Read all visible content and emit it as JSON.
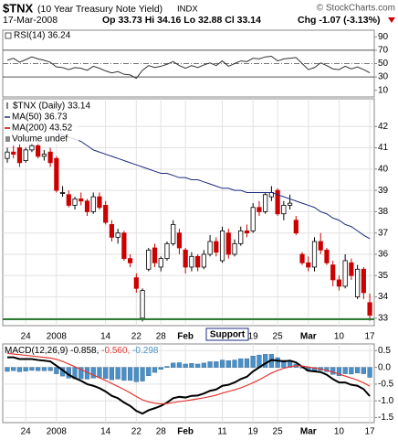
{
  "header": {
    "symbol": "$TNX",
    "name": "(10 Year Treasury Note Yield)",
    "exchange": "INDX",
    "credit": "© StockCharts.com",
    "date": "17-Mar-2008",
    "ohlc": "Op 33.73 Hi 34.16 Lo 32.88 Cl 33.14",
    "change": "Chg -1.07 (-3.13%)"
  },
  "chart_data": [
    {
      "type": "line",
      "title": "RSI(14) 36.24",
      "color": "#333333",
      "values": [
        55,
        58,
        52,
        56,
        60,
        57,
        55,
        52,
        45,
        44,
        41,
        44,
        43,
        40,
        46,
        43,
        39,
        36,
        38,
        34,
        33,
        28,
        40,
        47,
        44,
        46,
        49,
        53,
        47,
        43,
        47,
        44,
        48,
        51,
        47,
        54,
        46,
        50,
        54,
        53,
        58,
        57,
        60,
        61,
        54,
        57,
        58,
        59,
        50,
        41,
        44,
        51,
        47,
        42,
        41,
        46,
        42,
        45,
        41,
        36.24
      ],
      "ylim": [
        0,
        100
      ],
      "yticks": [
        10,
        30,
        50,
        70,
        90
      ],
      "levels": [
        70,
        30
      ],
      "dashed_levels": [
        50
      ]
    },
    {
      "type": "candlestick",
      "title": "$TNX (Daily) 33.14",
      "categories": [
        null,
        null,
        null,
        "24",
        null,
        null,
        null,
        null,
        "2008",
        null,
        null,
        null,
        null,
        null,
        null,
        null,
        "14",
        null,
        null,
        null,
        null,
        "22",
        null,
        null,
        null,
        "28",
        null,
        null,
        null,
        "Feb",
        null,
        null,
        null,
        null,
        null,
        "11",
        null,
        null,
        null,
        null,
        "19",
        null,
        null,
        null,
        "25",
        null,
        null,
        null,
        null,
        "Mar",
        null,
        null,
        null,
        null,
        "10",
        null,
        null,
        null,
        null,
        "17"
      ],
      "open": [
        40.5,
        40.8,
        41.0,
        40.4,
        40.9,
        41.1,
        40.6,
        40.8,
        40.5,
        38.9,
        38.8,
        38.3,
        38.6,
        38.5,
        38.0,
        38.7,
        38.3,
        37.4,
        36.8,
        37.0,
        35.8,
        34.9,
        33.0,
        35.3,
        36.3,
        35.4,
        35.8,
        36.5,
        37.0,
        36.2,
        35.4,
        35.9,
        35.4,
        36.0,
        36.6,
        35.7,
        37.0,
        36.0,
        36.5,
        37.1,
        37.1,
        38.2,
        38.0,
        38.7,
        39.0,
        37.9,
        38.3,
        37.6,
        36.0,
        35.6,
        35.4,
        36.6,
        36.2,
        35.5,
        34.8,
        34.5,
        35.6,
        34.0,
        35.3,
        33.73
      ],
      "high": [
        41.0,
        41.1,
        41.2,
        41.0,
        41.2,
        41.3,
        40.9,
        41.0,
        40.6,
        39.2,
        39.0,
        38.7,
        38.9,
        38.6,
        38.9,
        38.9,
        38.5,
        37.6,
        37.2,
        37.1,
        36.0,
        35.1,
        34.4,
        36.3,
        36.5,
        35.9,
        36.6,
        37.6,
        37.2,
        36.3,
        36.1,
        36.0,
        36.2,
        36.9,
        36.8,
        37.3,
        37.2,
        36.7,
        37.3,
        37.4,
        38.4,
        38.5,
        38.9,
        39.2,
        39.1,
        38.5,
        38.8,
        37.8,
        36.1,
        35.9,
        36.8,
        37.0,
        36.3,
        35.7,
        35.0,
        36.0,
        35.8,
        35.5,
        35.4,
        34.16
      ],
      "low": [
        40.3,
        40.5,
        40.1,
        40.3,
        40.8,
        40.5,
        40.4,
        40.1,
        38.9,
        38.7,
        38.2,
        38.1,
        38.3,
        37.8,
        37.9,
        38.1,
        37.4,
        36.6,
        36.5,
        35.7,
        35.4,
        34.2,
        32.85,
        35.2,
        35.4,
        35.2,
        35.7,
        36.4,
        36.0,
        35.1,
        35.2,
        35.2,
        35.3,
        35.9,
        35.9,
        35.6,
        35.8,
        35.9,
        36.4,
        36.8,
        37.0,
        37.8,
        37.9,
        38.5,
        37.8,
        37.6,
        38.1,
        36.9,
        35.5,
        35.2,
        35.2,
        36.0,
        35.5,
        34.5,
        34.3,
        34.4,
        34.8,
        33.9,
        33.9,
        32.88
      ],
      "close": [
        40.8,
        40.7,
        40.3,
        40.9,
        41.1,
        40.6,
        40.7,
        40.3,
        39.0,
        38.9,
        38.3,
        38.6,
        38.5,
        38.0,
        38.7,
        38.2,
        37.5,
        36.8,
        37.0,
        35.8,
        35.6,
        34.4,
        34.3,
        36.2,
        35.6,
        35.8,
        36.5,
        37.4,
        36.3,
        35.4,
        35.9,
        35.4,
        36.0,
        36.6,
        36.1,
        37.1,
        36.0,
        36.5,
        37.1,
        37.0,
        38.2,
        38.0,
        38.8,
        38.9,
        37.9,
        38.3,
        38.4,
        37.0,
        35.6,
        35.4,
        36.6,
        36.2,
        35.6,
        34.8,
        34.5,
        35.7,
        35.0,
        35.3,
        34.2,
        33.14
      ],
      "up_color": "#000000",
      "down_color": "#cc0000",
      "series": [
        {
          "name": "MA(50) 36.73",
          "color": "#1f2a80",
          "values": [
            null,
            null,
            null,
            null,
            null,
            null,
            null,
            null,
            41.7,
            41.6,
            41.5,
            41.4,
            41.3,
            41.1,
            40.9,
            40.8,
            40.7,
            40.6,
            40.5,
            40.4,
            40.3,
            40.2,
            40.1,
            40.0,
            39.9,
            39.8,
            39.8,
            39.7,
            39.6,
            39.6,
            39.5,
            39.5,
            39.4,
            39.3,
            39.2,
            39.1,
            39.1,
            39.0,
            39.0,
            38.9,
            38.9,
            38.9,
            38.9,
            38.9,
            38.8,
            38.7,
            38.6,
            38.5,
            38.4,
            38.3,
            38.2,
            38.0,
            37.9,
            37.7,
            37.6,
            37.4,
            37.3,
            37.1,
            36.9,
            36.73
          ]
        },
        {
          "name": "MA(200) 43.52",
          "color": "#cc0000"
        }
      ],
      "volume_label": "Volume undef",
      "support": {
        "value": 32.95,
        "label": "Support",
        "color": "#2e7d32"
      },
      "ylim": [
        32.65,
        43.3
      ],
      "yticks": [
        33,
        34,
        35,
        36,
        37,
        38,
        39,
        40,
        41,
        42
      ],
      "grid": true
    },
    {
      "type": "macd",
      "title": "MACD(12,26,9)",
      "categories": [
        null,
        null,
        null,
        "24",
        null,
        null,
        null,
        null,
        "2008",
        null,
        null,
        null,
        null,
        null,
        null,
        null,
        "14",
        null,
        null,
        null,
        null,
        "22",
        null,
        null,
        null,
        "28",
        null,
        null,
        null,
        "Feb",
        null,
        null,
        null,
        null,
        null,
        "11",
        null,
        null,
        null,
        null,
        "19",
        null,
        null,
        null,
        "25",
        null,
        null,
        null,
        null,
        "Mar",
        null,
        null,
        null,
        null,
        "10",
        null,
        null,
        null,
        null,
        "17"
      ],
      "series": [
        {
          "name": "-0.858,",
          "color": "#000000",
          "values": [
            0.3,
            0.3,
            0.25,
            0.25,
            0.25,
            0.22,
            0.2,
            0.18,
            0.05,
            -0.08,
            -0.22,
            -0.32,
            -0.4,
            -0.5,
            -0.55,
            -0.62,
            -0.72,
            -0.85,
            -0.92,
            -1.05,
            -1.15,
            -1.3,
            -1.38,
            -1.28,
            -1.22,
            -1.15,
            -1.05,
            -0.92,
            -0.88,
            -0.9,
            -0.85,
            -0.84,
            -0.78,
            -0.7,
            -0.66,
            -0.55,
            -0.52,
            -0.45,
            -0.35,
            -0.28,
            -0.12,
            0.0,
            0.12,
            0.22,
            0.2,
            0.18,
            0.2,
            0.15,
            0.02,
            -0.1,
            -0.12,
            -0.14,
            -0.22,
            -0.35,
            -0.45,
            -0.45,
            -0.52,
            -0.55,
            -0.65,
            -0.858
          ]
        },
        {
          "name": "-0.560,",
          "color": "#e53935",
          "values": [
            0.42,
            0.4,
            0.38,
            0.36,
            0.34,
            0.32,
            0.3,
            0.28,
            0.24,
            0.18,
            0.1,
            0.02,
            -0.06,
            -0.15,
            -0.23,
            -0.31,
            -0.39,
            -0.48,
            -0.57,
            -0.66,
            -0.76,
            -0.87,
            -0.97,
            -1.03,
            -1.07,
            -1.09,
            -1.08,
            -1.05,
            -1.02,
            -1.0,
            -0.97,
            -0.94,
            -0.91,
            -0.87,
            -0.83,
            -0.77,
            -0.72,
            -0.67,
            -0.61,
            -0.54,
            -0.46,
            -0.37,
            -0.27,
            -0.17,
            -0.09,
            -0.03,
            0.02,
            0.05,
            0.04,
            0.01,
            -0.02,
            -0.05,
            -0.09,
            -0.14,
            -0.2,
            -0.26,
            -0.32,
            -0.38,
            -0.46,
            -0.56
          ]
        },
        {
          "name": "-0.298",
          "color": "#4a90c8",
          "style": "histogram",
          "values": [
            -0.12,
            -0.1,
            -0.13,
            -0.11,
            -0.09,
            -0.1,
            -0.1,
            -0.1,
            -0.19,
            -0.26,
            -0.32,
            -0.34,
            -0.34,
            -0.35,
            -0.32,
            -0.31,
            -0.33,
            -0.37,
            -0.35,
            -0.39,
            -0.39,
            -0.43,
            -0.41,
            -0.25,
            -0.15,
            -0.06,
            0.03,
            0.13,
            0.14,
            0.1,
            0.12,
            0.1,
            0.13,
            0.17,
            0.17,
            0.22,
            0.2,
            0.22,
            0.26,
            0.26,
            0.34,
            0.37,
            0.39,
            0.39,
            0.29,
            0.21,
            0.18,
            0.1,
            -0.02,
            -0.11,
            -0.1,
            -0.09,
            -0.13,
            -0.21,
            -0.25,
            -0.19,
            -0.2,
            -0.17,
            -0.19,
            -0.298
          ]
        }
      ],
      "ylim": [
        -1.65,
        0.7
      ],
      "yticks": [
        0.5,
        {
          "value": 0,
          "label": "0.0"
        },
        -0.5,
        {
          "value": -1,
          "label": "-1.0"
        },
        -1.5
      ]
    }
  ]
}
